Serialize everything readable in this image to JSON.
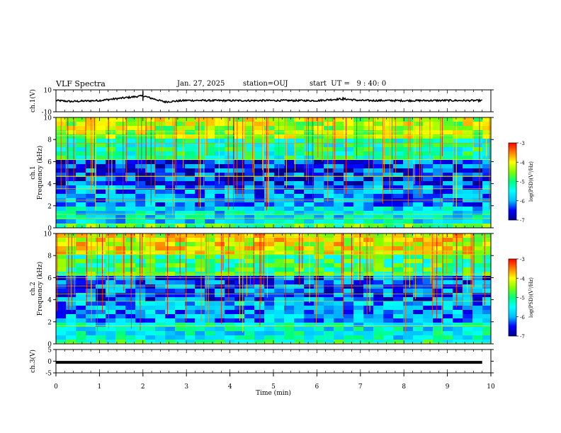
{
  "header": {
    "title": "VLF Spectra",
    "date": "Jan. 27, 2025",
    "station": "station=OUJ",
    "start": "start  UT =   9 : 40: 0"
  },
  "colors": {
    "ink": "#000000",
    "colormap": [
      "#00008b",
      "#0000ff",
      "#00bfff",
      "#00ffff",
      "#00ff80",
      "#7fff00",
      "#ffff00",
      "#ff8000",
      "#ff0000"
    ]
  },
  "chart_data": [
    {
      "type": "line",
      "name": "ch1-waveform",
      "ylabel": "ch.1(V)",
      "ylim": [
        -10,
        10
      ],
      "yticks": [
        "10",
        "-10"
      ],
      "x": [
        0,
        0.35,
        1.0,
        2.0,
        2.5,
        3.0,
        4.0,
        5.0,
        6.0,
        6.6,
        7.0,
        8.0,
        9.0,
        9.8
      ],
      "y": [
        0.3,
        -0.6,
        0.3,
        4.5,
        -1.0,
        0.4,
        0.2,
        0.3,
        0.2,
        1.8,
        0.3,
        0.2,
        0.3,
        0.2
      ]
    },
    {
      "type": "heatmap",
      "name": "ch1-spectrogram",
      "ylabel": "ch.1\nFrequency (kHz)",
      "ylim": [
        0,
        10
      ],
      "yticks": [
        "0",
        "2",
        "4",
        "6",
        "8",
        "10"
      ],
      "colorbar": {
        "label": "log(PSD)(V²/Hz)",
        "range": [
          -7,
          -3
        ],
        "ticks": [
          "-3",
          "-4",
          "-5",
          "-6",
          "-7"
        ]
      },
      "bands": [
        {
          "freq_range": [
            8.0,
            10.0
          ],
          "log_psd": -4.3
        },
        {
          "freq_range": [
            6.0,
            8.0
          ],
          "log_psd": -5.2
        },
        {
          "freq_range": [
            4.0,
            6.0
          ],
          "log_psd": -6.4
        },
        {
          "freq_range": [
            2.0,
            4.0
          ],
          "log_psd": -6.1
        },
        {
          "freq_range": [
            0.5,
            2.0
          ],
          "log_psd": -5.6
        },
        {
          "freq_range": [
            0.0,
            0.5
          ],
          "log_psd": -4.8
        }
      ]
    },
    {
      "type": "heatmap",
      "name": "ch2-spectrogram",
      "ylabel": "ch.2\nFrequency (kHz)",
      "ylim": [
        0,
        10
      ],
      "yticks": [
        "0",
        "2",
        "4",
        "6",
        "8",
        "10"
      ],
      "colorbar": {
        "label": "log(PSD)(V²/Hz)",
        "range": [
          -7,
          -3
        ],
        "ticks": [
          "-3",
          "-4",
          "-5",
          "-6",
          "-7"
        ]
      },
      "bands": [
        {
          "freq_range": [
            8.0,
            10.0
          ],
          "log_psd": -4.1
        },
        {
          "freq_range": [
            6.0,
            8.0
          ],
          "log_psd": -5.0
        },
        {
          "freq_range": [
            4.0,
            6.0
          ],
          "log_psd": -6.3
        },
        {
          "freq_range": [
            2.0,
            4.0
          ],
          "log_psd": -6.0
        },
        {
          "freq_range": [
            0.5,
            2.0
          ],
          "log_psd": -5.5
        },
        {
          "freq_range": [
            0.0,
            0.5
          ],
          "log_psd": -5.2
        }
      ]
    },
    {
      "type": "line",
      "name": "ch3-waveform",
      "ylabel": "ch.3(V)",
      "ylim": [
        -5,
        5
      ],
      "yticks": [
        "5",
        "0",
        "-5"
      ],
      "x": [
        0,
        9.8
      ],
      "y": [
        -0.5,
        -0.5
      ]
    }
  ],
  "xaxis": {
    "label": "Time (min)",
    "range": [
      0,
      10
    ],
    "ticks": [
      "0",
      "1",
      "2",
      "3",
      "4",
      "5",
      "6",
      "7",
      "8",
      "9",
      "10"
    ]
  }
}
